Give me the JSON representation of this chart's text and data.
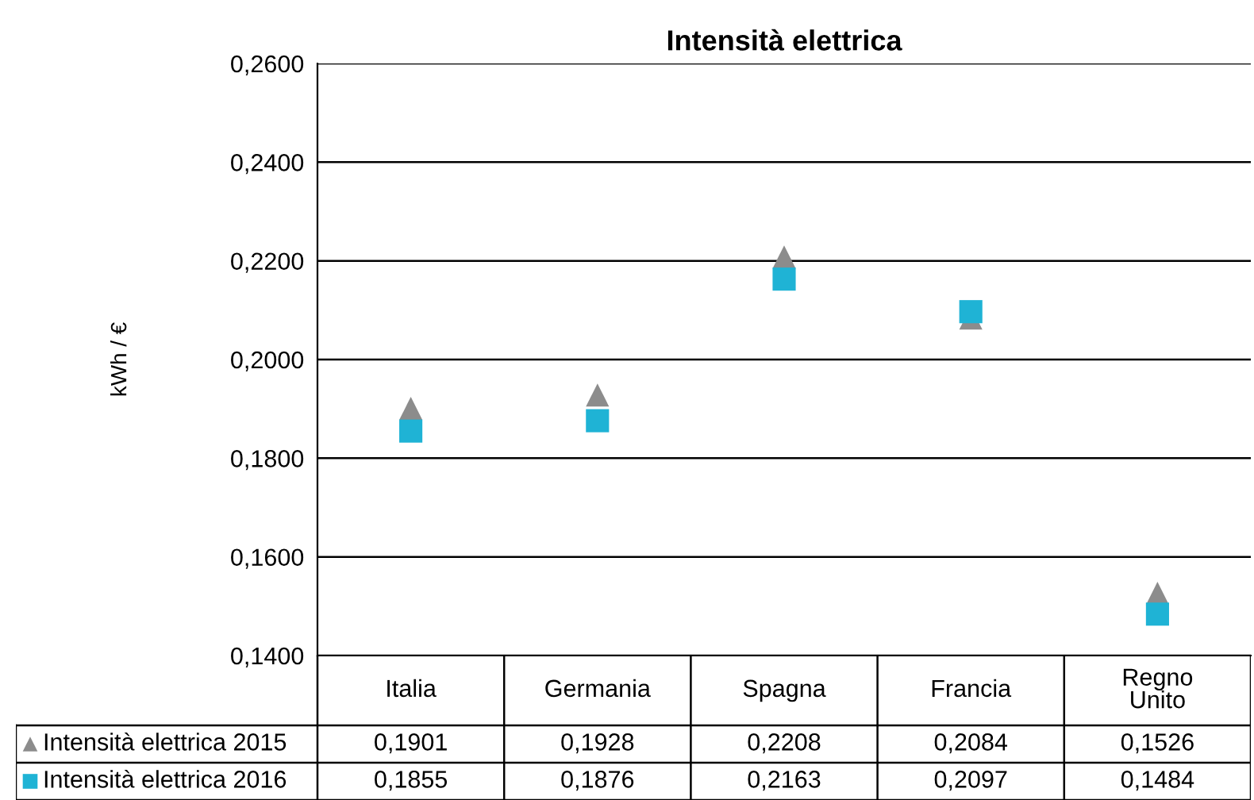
{
  "chart_data": {
    "type": "scatter",
    "title": "Intensità elettrica",
    "ylabel": "kWh / €",
    "categories": [
      "Italia",
      "Germania",
      "Spagna",
      "Francia",
      "Regno\nUnito"
    ],
    "series": [
      {
        "name": "Intensità elettrica 2015",
        "color": "#8c8c8c",
        "marker": "triangle",
        "values": [
          0.1901,
          0.1928,
          0.2208,
          0.2084,
          0.1526
        ],
        "value_labels": [
          "0,1901",
          "0,1928",
          "0,2208",
          "0,2084",
          "0,1526"
        ]
      },
      {
        "name": "Intensità elettrica 2016",
        "color": "#1fb3d5",
        "marker": "square",
        "values": [
          0.1855,
          0.1876,
          0.2163,
          0.2097,
          0.1484
        ],
        "value_labels": [
          "0,1855",
          "0,1876",
          "0,2163",
          "0,2097",
          "0,1484"
        ]
      }
    ],
    "ylim": [
      0.14,
      0.26
    ],
    "yticks": [
      {
        "value": 0.14,
        "label": "0,1400"
      },
      {
        "value": 0.16,
        "label": "0,1600"
      },
      {
        "value": 0.18,
        "label": "0,1800"
      },
      {
        "value": 0.2,
        "label": "0,2000"
      },
      {
        "value": 0.22,
        "label": "0,2200"
      },
      {
        "value": 0.24,
        "label": "0,2400"
      },
      {
        "value": 0.26,
        "label": "0,2600"
      }
    ],
    "grid": "y",
    "legend": "bottom left"
  }
}
